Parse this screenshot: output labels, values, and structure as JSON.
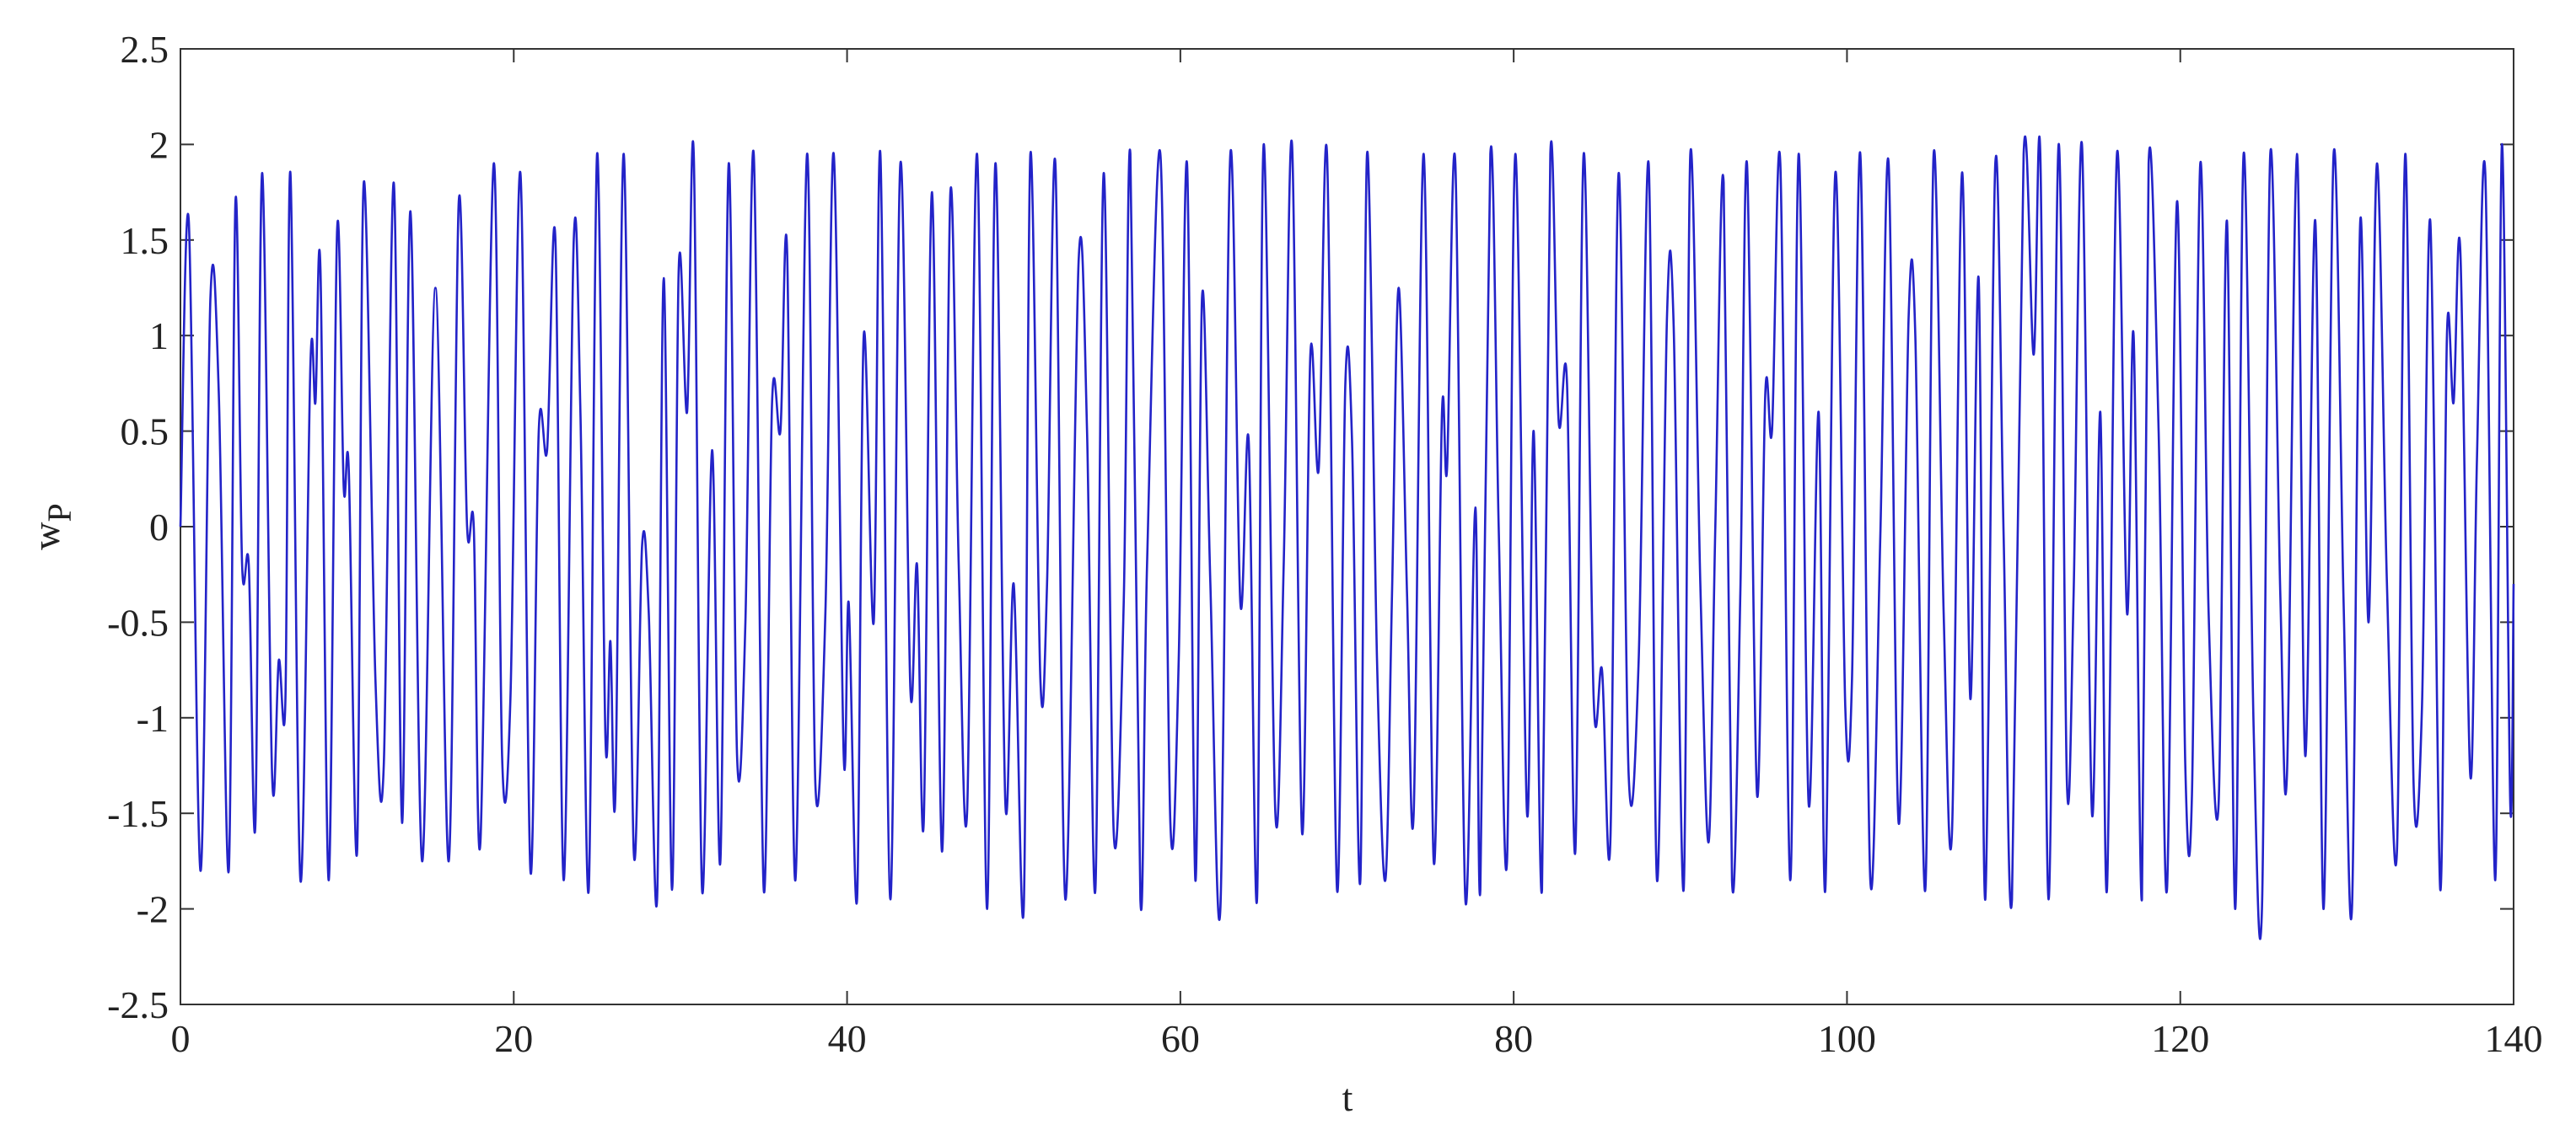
{
  "chart_data": {
    "type": "line",
    "xlabel": "t",
    "ylabel": "w",
    "ylabel_sub": "P",
    "xlim": [
      0,
      140
    ],
    "xticks": [
      0,
      20,
      40,
      60,
      80,
      100,
      120,
      140
    ],
    "ylim": [
      -2.5,
      2.5
    ],
    "yticks": [
      -2.5,
      -2,
      -1.5,
      -1,
      -0.5,
      0,
      0.5,
      1,
      1.5,
      2,
      2.5
    ],
    "grid": false,
    "series": [
      {
        "color": "#2323c8",
        "x": [
          0,
          0.5,
          1.2,
          1.8,
          2.3,
          2.9,
          3.3,
          3.7,
          4.1,
          4.5,
          4.9,
          5.5,
          5.9,
          6.3,
          6.6,
          7.2,
          7.8,
          8.1,
          8.4,
          8.9,
          9.4,
          9.8,
          10.1,
          10.6,
          11.0,
          11.7,
          12.2,
          12.8,
          13.3,
          13.8,
          14.5,
          15.3,
          16.1,
          16.7,
          17.2,
          17.6,
          18.0,
          18.8,
          19.3,
          19.8,
          20.4,
          21.0,
          21.5,
          22.0,
          22.5,
          23.0,
          23.6,
          24.0,
          24.5,
          25.0,
          25.5,
          25.8,
          26.1,
          26.6,
          27.2,
          27.7,
          28.1,
          28.6,
          29.0,
          29.5,
          29.9,
          30.4,
          30.8,
          31.3,
          31.9,
          32.4,
          32.9,
          33.4,
          33.9,
          34.4,
          35.0,
          35.5,
          36.0,
          36.4,
          36.9,
          37.6,
          38.1,
          38.7,
          39.2,
          39.8,
          40.1,
          40.6,
          41.0,
          41.6,
          42.0,
          42.6,
          43.2,
          43.8,
          44.2,
          44.6,
          45.1,
          45.7,
          46.2,
          46.7,
          47.2,
          47.8,
          48.4,
          48.9,
          49.5,
          50.0,
          50.6,
          51.0,
          51.6,
          52.0,
          52.5,
          53.1,
          53.9,
          54.4,
          54.9,
          55.4,
          56.0,
          56.6,
          57.0,
          57.6,
          58.0,
          58.8,
          59.4,
          59.9,
          60.4,
          60.9,
          61.3,
          61.8,
          62.4,
          63.0,
          63.6,
          64.1,
          64.6,
          65.0,
          65.7,
          66.2,
          66.7,
          67.3,
          67.8,
          68.3,
          68.8,
          69.4,
          69.9,
          70.3,
          70.8,
          71.2,
          71.8,
          72.3,
          72.7,
          73.1,
          73.6,
          74.0,
          74.6,
          75.2,
          75.7,
          76.0,
          76.5,
          77.1,
          77.7,
          78.0,
          78.6,
          79.1,
          79.6,
          80.1,
          80.8,
          81.2,
          81.7,
          82.2,
          82.7,
          83.2,
          83.7,
          84.2,
          84.8,
          85.3,
          85.8,
          86.3,
          86.9,
          87.5,
          88.1,
          88.6,
          89.2,
          89.6,
          90.2,
          90.6,
          91.2,
          91.7,
          92.1,
          92.6,
          93.1,
          93.6,
          94.0,
          94.6,
          95.1,
          95.5,
          96.0,
          96.6,
          97.1,
          97.7,
          98.3,
          98.7,
          99.3,
          99.9,
          100.3,
          100.8,
          101.4,
          102.0,
          102.5,
          103.1,
          103.7,
          104.1,
          104.7,
          105.2,
          105.8,
          106.3,
          106.9,
          107.4,
          107.9,
          108.3,
          108.9,
          109.4,
          109.9,
          110.6,
          111.2,
          111.6,
          112.1,
          112.7,
          113.2,
          113.6,
          114.1,
          114.7,
          115.2,
          115.6,
          116.2,
          116.8,
          117.2,
          117.7,
          118.1,
          118.7,
          119.2,
          119.8,
          120.3,
          120.7,
          121.2,
          121.7,
          122.3,
          122.8,
          123.3,
          123.8,
          124.4,
          124.9,
          125.4,
          126.0,
          126.4,
          127.0,
          127.5,
          128.1,
          128.6,
          129.2,
          129.8,
          130.3,
          130.8,
          131.3,
          131.8,
          132.4,
          133.0,
          133.5,
          134.0,
          134.5,
          135.0,
          135.6,
          136.0,
          136.4,
          136.8,
          137.4,
          137.8,
          138.3,
          138.9,
          139.3,
          139.8,
          140
        ],
        "values": [
          0,
          1.6,
          -1.8,
          1.2,
          0.7,
          -1.8,
          1.7,
          -0.2,
          -0.2,
          -1.55,
          1.85,
          -1.3,
          -0.7,
          -0.9,
          1.85,
          -1.85,
          0.85,
          0.65,
          1.35,
          -1.85,
          1.55,
          0.2,
          0.3,
          -1.7,
          1.8,
          -0.8,
          -1.25,
          1.8,
          -1.55,
          1.65,
          -1.75,
          1.25,
          -1.75,
          1.7,
          0,
          0,
          -1.65,
          1.9,
          -1.2,
          -0.9,
          1.85,
          -1.8,
          0.5,
          0.4,
          1.5,
          -1.85,
          1.5,
          0.6,
          -1.9,
          1.95,
          -1.1,
          -0.6,
          -1.4,
          1.95,
          -1.7,
          -0.1,
          -0.45,
          -1.95,
          1.3,
          -1.9,
          1.35,
          0.6,
          1.95,
          -1.9,
          0.4,
          -1.75,
          1.9,
          -1.2,
          -0.5,
          1.95,
          -1.9,
          0.65,
          0.5,
          1.45,
          -1.85,
          1.95,
          -1.35,
          -0.45,
          1.95,
          -1.2,
          -0.4,
          -1.95,
          1.0,
          -0.5,
          1.95,
          -1.95,
          1.9,
          -0.85,
          -0.2,
          -1.55,
          1.75,
          -1.7,
          1.75,
          -0.2,
          -1.5,
          1.95,
          -2.0,
          1.9,
          -1.45,
          -0.3,
          -2.0,
          1.95,
          -0.8,
          -0.3,
          1.9,
          -1.95,
          1.4,
          0.5,
          -1.9,
          1.85,
          -1.6,
          -0.4,
          1.95,
          -1.95,
          -0.2,
          1.95,
          -1.55,
          -0.7,
          1.9,
          -1.85,
          1.2,
          -0.3,
          -2.0,
          1.95,
          -0.4,
          0.45,
          -1.95,
          2.0,
          -1.5,
          -0.2,
          2.0,
          -1.6,
          0.9,
          0.3,
          1.95,
          -1.9,
          0.75,
          0.45,
          -1.85,
          1.95,
          -0.7,
          -1.85,
          -0.35,
          1.25,
          -0.35,
          -1.5,
          1.95,
          -1.75,
          0.6,
          0.3,
          1.9,
          -1.95,
          0.1,
          -1.9,
          1.95,
          0,
          -1.75,
          1.95,
          -1.5,
          0.5,
          -1.9,
          1.95,
          0.55,
          0.75,
          -1.7,
          1.95,
          -0.9,
          -0.75,
          -1.65,
          1.85,
          -1.3,
          -0.7,
          1.9,
          -1.85,
          1.1,
          1.05,
          -1.9,
          1.95,
          -0.3,
          -1.65,
          0.0,
          1.8,
          -1.85,
          -0.35,
          1.9,
          -1.4,
          0.7,
          0.5,
          1.9,
          -1.85,
          1.95,
          -1.45,
          0.6,
          -1.9,
          1.85,
          -0.95,
          -0.8,
          1.95,
          -1.85,
          -0.05,
          1.9,
          -1.55,
          1.1,
          1.0,
          -1.9,
          1.95,
          -0.45,
          -1.6,
          1.85,
          -0.9,
          1.3,
          -1.95,
          1.9,
          -0.05,
          -1.95,
          1.95,
          0.9,
          1.95,
          -1.95,
          2.0,
          -1.35,
          -0.35,
          2.0,
          -1.5,
          0.6,
          -1.9,
          1.95,
          -0.45,
          1.0,
          -1.95,
          1.9,
          0.5,
          -1.9,
          1.7,
          -1.25,
          -1.4,
          1.9,
          -0.45,
          -1.45,
          1.6,
          -2.0,
          1.95,
          -1.05,
          -2.0,
          1.95,
          -0.35,
          -1.3,
          1.95,
          -1.2,
          1.6,
          -2.0,
          1.95,
          -0.4,
          -2.0,
          1.6,
          -0.5,
          1.9,
          -0.3,
          -1.7,
          1.95,
          -1.35,
          -0.95,
          1.6,
          -1.9,
          1.0,
          0.65,
          1.45,
          -1.3,
          0.35,
          1.85,
          -1.85,
          2.0,
          -1.45,
          -0.3
        ]
      }
    ]
  }
}
